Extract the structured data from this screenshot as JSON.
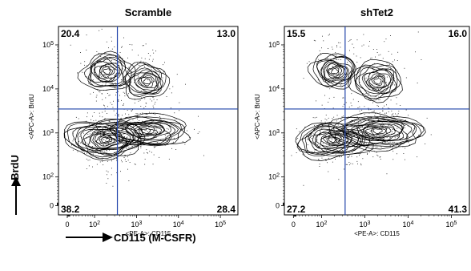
{
  "chart_data": {
    "figure_type": "flow-cytometry-contour-plot",
    "shared": {
      "x_axis_label": "CD115 (M-CSFR)",
      "y_axis_label": "BrdU"
    },
    "panels": [
      {
        "type": "scatter",
        "title": "Scramble",
        "xlabel": "<PE-A>: CD115",
        "ylabel": "<APC-A>: BrdU",
        "x_scale": "biexponential",
        "y_scale": "biexponential",
        "x_ticks": [
          "0",
          "10^2",
          "10^3",
          "10^4",
          "10^5"
        ],
        "y_ticks": [
          "0",
          "10^2",
          "10^3",
          "10^4",
          "10^5"
        ],
        "gate": {
          "x": 350,
          "y": 3500
        },
        "quadrants": {
          "upper_left": "20.4",
          "upper_right": "13.0",
          "lower_left": "38.2",
          "lower_right": "28.4"
        },
        "populations": [
          {
            "x": 180,
            "y": 700,
            "spread": [
              1.0,
              0.9
            ],
            "weight": 1.0
          },
          {
            "x": 1700,
            "y": 1100,
            "spread": [
              1.2,
              0.8
            ],
            "weight": 0.8
          },
          {
            "x": 200,
            "y": 25000,
            "spread": [
              0.8,
              1.2
            ],
            "weight": 0.55
          },
          {
            "x": 1800,
            "y": 15000,
            "spread": [
              0.9,
              1.4
            ],
            "weight": 0.35
          }
        ],
        "contour_color": "#000000",
        "gate_color": "#2244aa"
      },
      {
        "type": "scatter",
        "title": "shTet2",
        "xlabel": "<PE-A>: CD115",
        "ylabel": "<APC-A>: BrdU",
        "x_scale": "biexponential",
        "y_scale": "biexponential",
        "x_ticks": [
          "0",
          "10^2",
          "10^3",
          "10^4",
          "10^5"
        ],
        "y_ticks": [
          "0",
          "10^2",
          "10^3",
          "10^4",
          "10^5"
        ],
        "gate": {
          "x": 350,
          "y": 3500
        },
        "quadrants": {
          "upper_left": "15.5",
          "upper_right": "16.0",
          "lower_left": "27.2",
          "lower_right": "41.3"
        },
        "populations": [
          {
            "x": 180,
            "y": 700,
            "spread": [
              1.0,
              0.9
            ],
            "weight": 0.85
          },
          {
            "x": 2000,
            "y": 1100,
            "spread": [
              1.2,
              0.8
            ],
            "weight": 1.0
          },
          {
            "x": 200,
            "y": 25000,
            "spread": [
              0.8,
              1.2
            ],
            "weight": 0.45
          },
          {
            "x": 2000,
            "y": 15000,
            "spread": [
              0.9,
              1.4
            ],
            "weight": 0.45
          }
        ],
        "contour_color": "#000000",
        "gate_color": "#2244aa"
      }
    ]
  }
}
